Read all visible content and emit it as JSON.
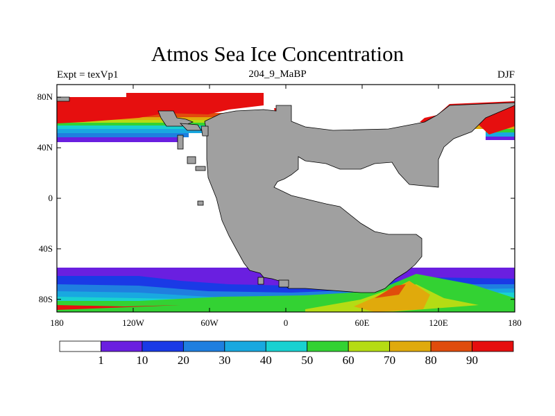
{
  "title": "Atmos Sea Ice Concentration",
  "subtitle_left": "Expt = texVp1",
  "subtitle_center": "204_9_MaBP",
  "subtitle_right": "DJF",
  "chart_data": {
    "type": "heatmap",
    "title": "Atmos Sea Ice Concentration",
    "x_axis": {
      "range": [
        -180,
        180
      ],
      "ticks": [
        "180",
        "120W",
        "60W",
        "0",
        "60E",
        "120E",
        "180"
      ]
    },
    "y_axis": {
      "range": [
        -90,
        90
      ],
      "ticks": [
        "80N",
        "40N",
        "0",
        "40S",
        "80S"
      ]
    },
    "colorbar": {
      "levels": [
        "1",
        "10",
        "20",
        "30",
        "40",
        "50",
        "60",
        "70",
        "80",
        "90"
      ],
      "colors": [
        "#ffffff",
        "#6a1fe0",
        "#1a3ae6",
        "#1f7fe0",
        "#19a8e0",
        "#19d1d1",
        "#33d233",
        "#b5dc14",
        "#e0aa0c",
        "#e04c0c",
        "#e60f0f"
      ]
    },
    "colors": {
      "land": "#a0a0a0",
      "no_ice": "#ffffff"
    }
  }
}
